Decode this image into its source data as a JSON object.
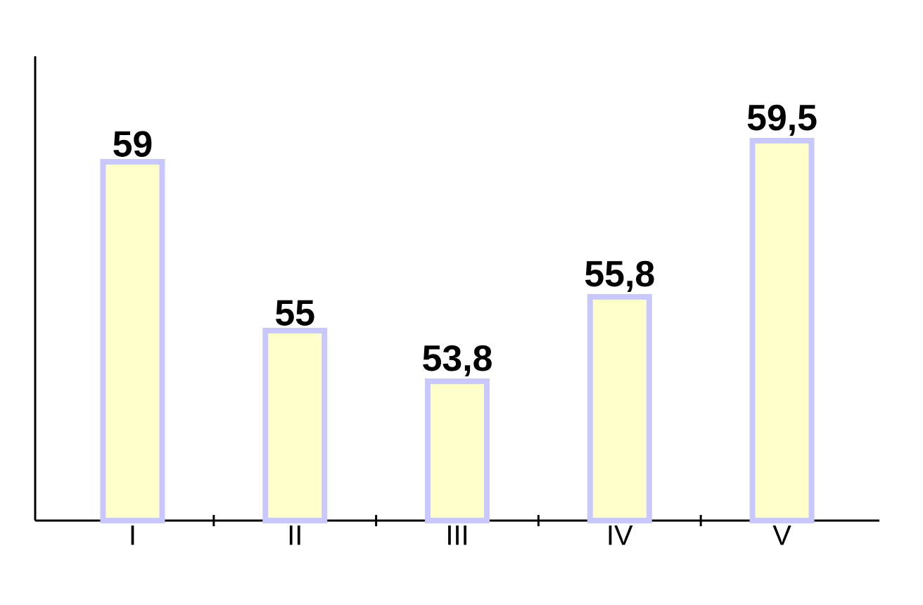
{
  "chart_data": {
    "type": "bar",
    "categories": [
      "I",
      "II",
      "III",
      "IV",
      "V"
    ],
    "values": [
      59,
      55,
      53.8,
      55.8,
      59.5
    ],
    "value_labels": [
      "59",
      "55",
      "53,8",
      "55,8",
      "59,5"
    ],
    "color": "#ffffcc",
    "ylim": [
      50.5,
      61.5
    ]
  }
}
